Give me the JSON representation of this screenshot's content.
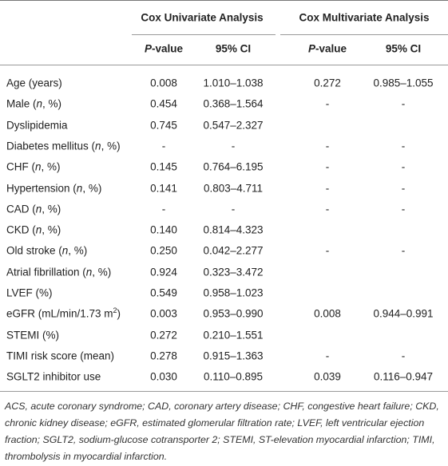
{
  "table": {
    "group_headers": [
      "Cox Univariate Analysis",
      "Cox Multivariate Analysis"
    ],
    "column_headers": [
      "P-value",
      "95% CI",
      "P-value",
      "95% CI"
    ],
    "rows": [
      {
        "label": "Age (years)",
        "cells": [
          "0.008",
          "1.010–1.038",
          "0.272",
          "0.985–1.055"
        ]
      },
      {
        "label": "Male (n, %)",
        "cells": [
          "0.454",
          "0.368–1.564",
          "-",
          "-"
        ]
      },
      {
        "label": "Dyslipidemia",
        "cells": [
          "0.745",
          "0.547–2.327",
          null,
          null
        ]
      },
      {
        "label": "Diabetes mellitus (n, %)",
        "cells": [
          "-",
          "-",
          "-",
          "-"
        ]
      },
      {
        "label": "CHF (n, %)",
        "cells": [
          "0.145",
          "0.764–6.195",
          "-",
          "-"
        ]
      },
      {
        "label": "Hypertension (n, %)",
        "cells": [
          "0.141",
          "0.803–4.711",
          "-",
          "-"
        ]
      },
      {
        "label": "CAD (n, %)",
        "cells": [
          "-",
          "-",
          "-",
          "-"
        ]
      },
      {
        "label": "CKD (n, %)",
        "cells": [
          "0.140",
          "0.814–4.323",
          null,
          null
        ]
      },
      {
        "label": "Old stroke (n, %)",
        "cells": [
          "0.250",
          "0.042–2.277",
          "-",
          "-"
        ]
      },
      {
        "label": "Atrial fibrillation (n, %)",
        "cells": [
          "0.924",
          "0.323–3.472",
          null,
          null
        ]
      },
      {
        "label": "LVEF (%)",
        "cells": [
          "0.549",
          "0.958–1.023",
          null,
          null
        ]
      },
      {
        "label": "eGFR (mL/min/1.73 m2)",
        "cells": [
          "0.003",
          "0.953–0.990",
          "0.008",
          "0.944–0.991"
        ]
      },
      {
        "label": "STEMI (%)",
        "cells": [
          "0.272",
          "0.210–1.551",
          null,
          null
        ]
      },
      {
        "label": "TIMI risk score (mean)",
        "cells": [
          "0.278",
          "0.915–1.363",
          "-",
          "-"
        ]
      },
      {
        "label": "SGLT2 inhibitor use",
        "cells": [
          "0.030",
          "0.110–0.895",
          "0.039",
          "0.116–0.947"
        ]
      }
    ]
  },
  "footnote": "ACS, acute coronary syndrome; CAD, coronary artery disease; CHF, congestive heart failure; CKD, chronic kidney disease; eGFR, estimated glomerular filtration rate; LVEF, left ventricular ejection fraction; SGLT2, sodium-glucose cotransporter 2; STEMI, ST-elevation myocardial infarction; TIMI, thrombolysis in myocardial infarction."
}
